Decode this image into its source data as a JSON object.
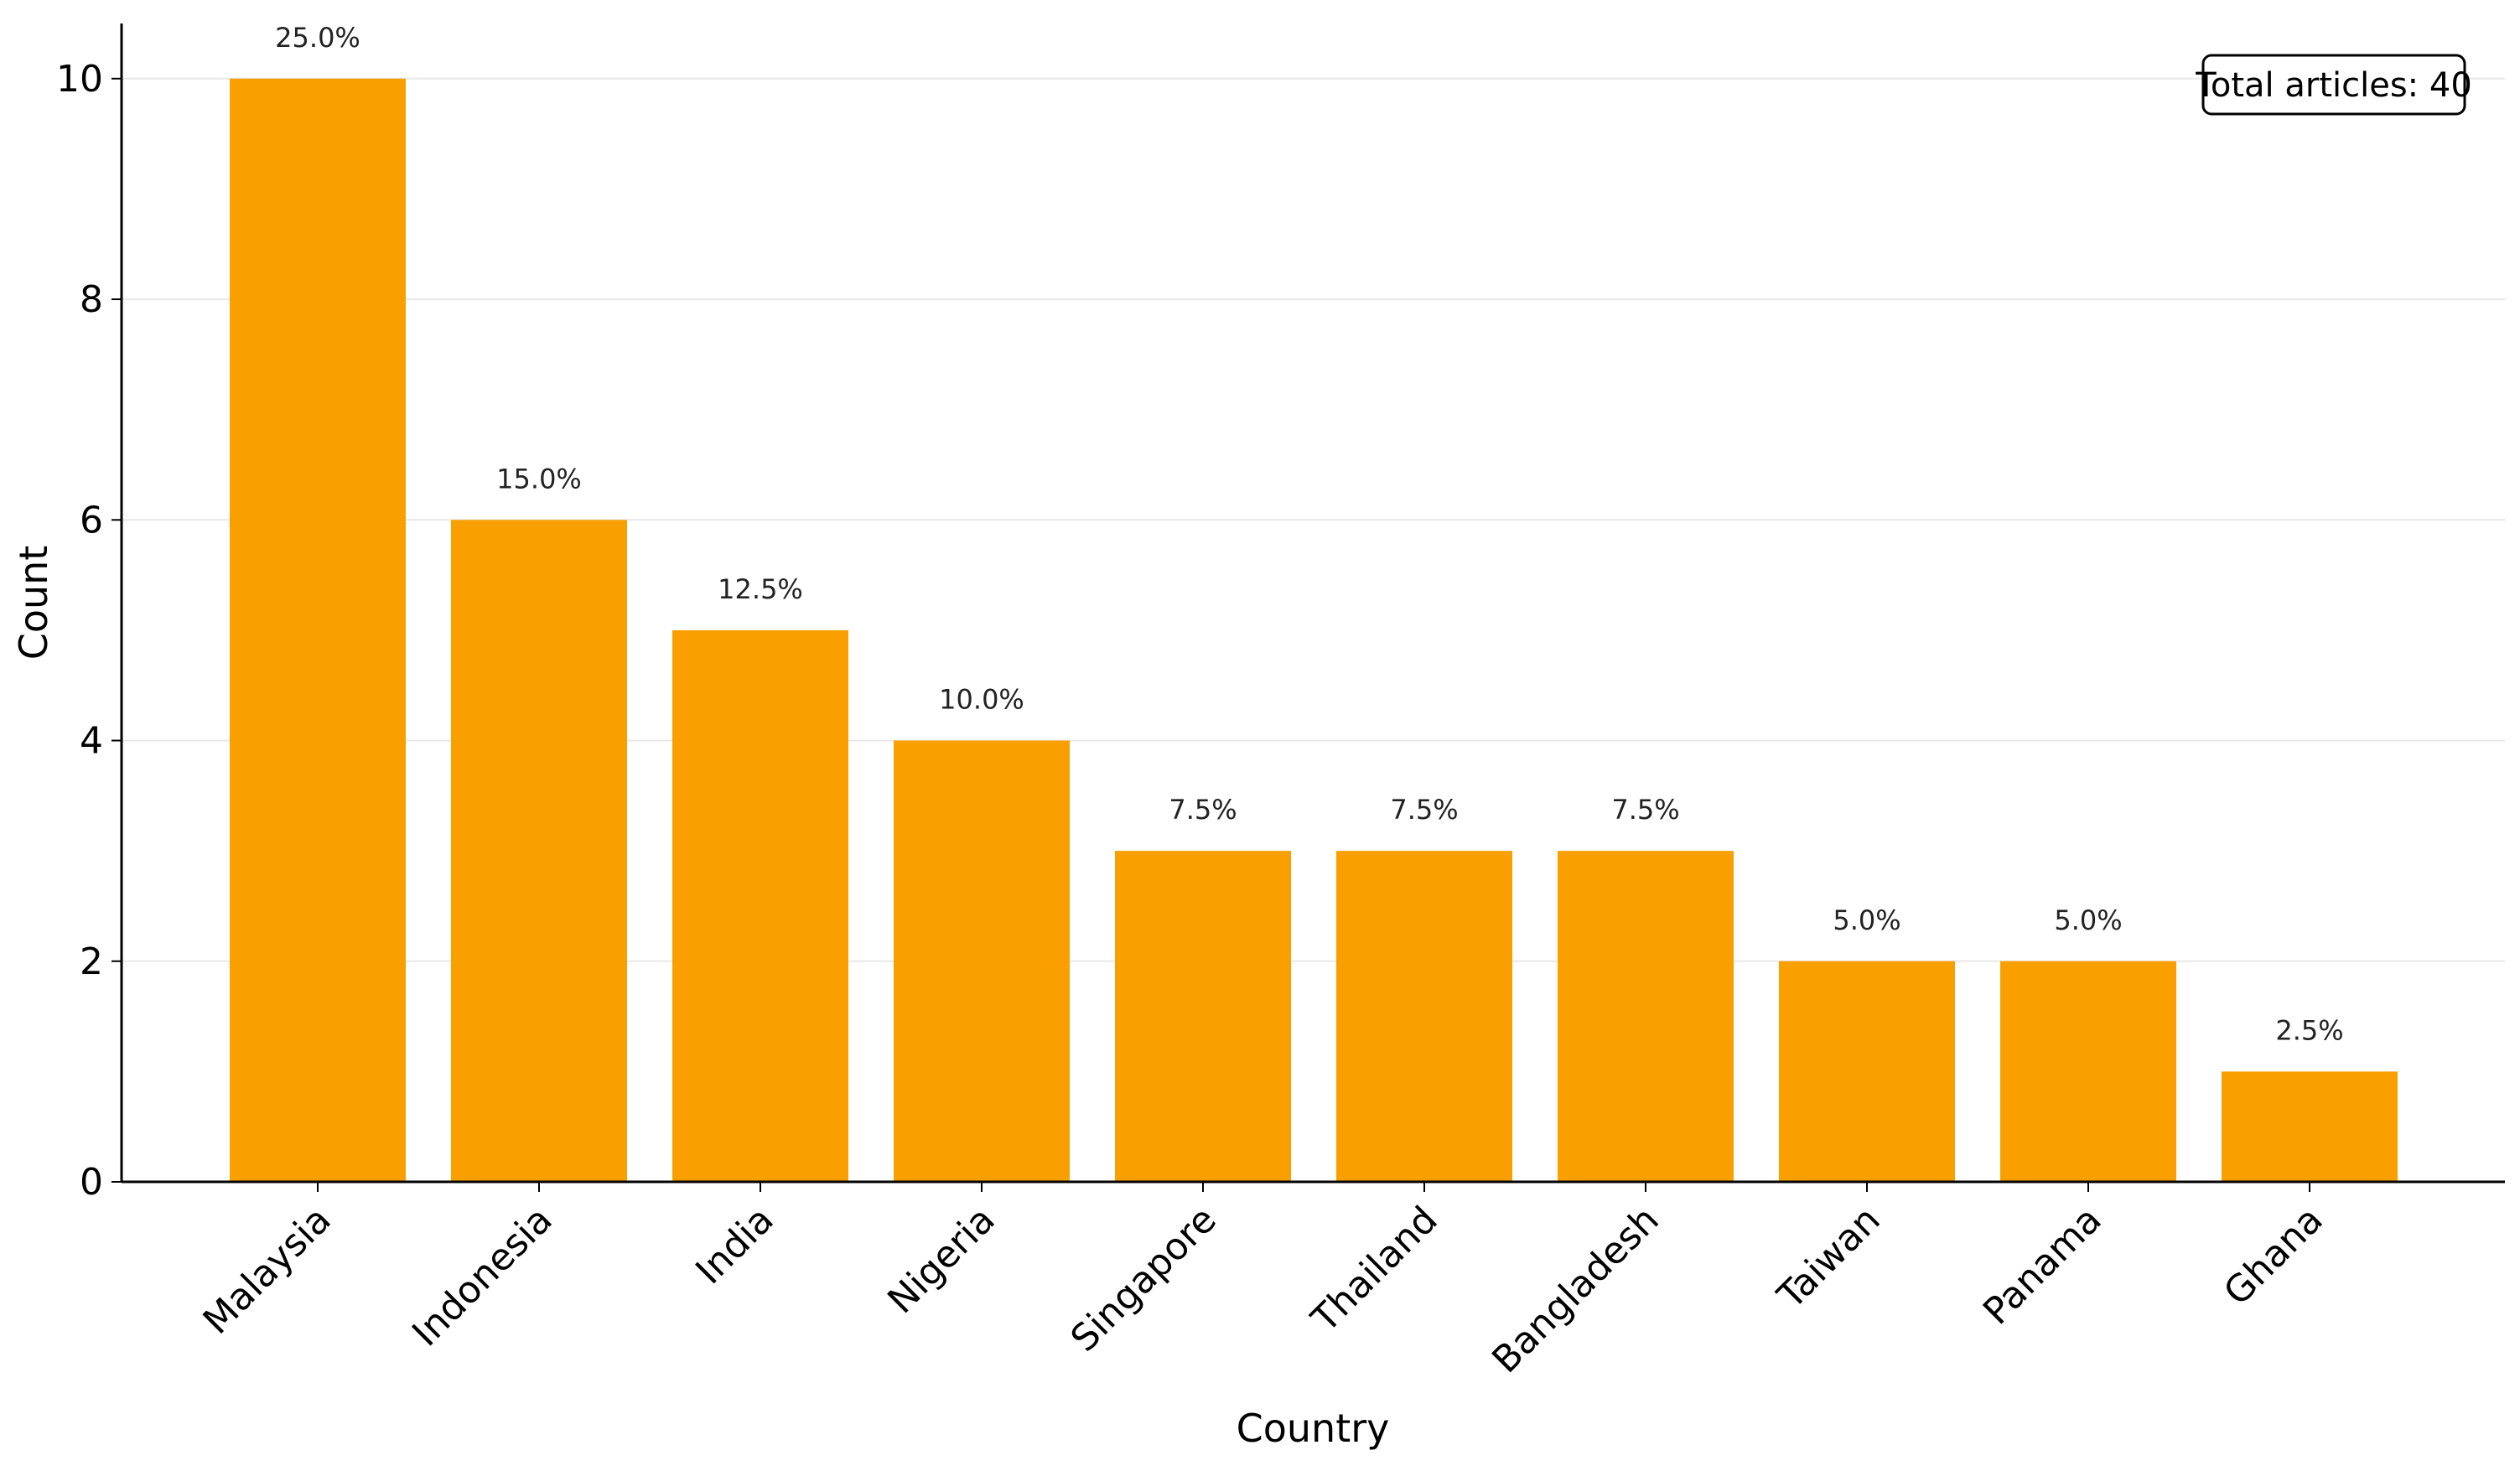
{
  "chart_data": {
    "type": "bar",
    "title": "",
    "xlabel": "Country",
    "ylabel": "Count",
    "categories": [
      "Malaysia",
      "Indonesia",
      "India",
      "Nigeria",
      "Singapore",
      "Thailand",
      "Bangladesh",
      "Taiwan",
      "Panama",
      "Ghana"
    ],
    "values": [
      10,
      6,
      5,
      4,
      3,
      3,
      3,
      2,
      2,
      1
    ],
    "data_labels": [
      "25.0%",
      "15.0%",
      "12.5%",
      "10.0%",
      "7.5%",
      "7.5%",
      "7.5%",
      "5.0%",
      "5.0%",
      "2.5%"
    ],
    "yticks": [
      0,
      2,
      4,
      6,
      8,
      10
    ],
    "ylim": [
      0,
      10.5
    ],
    "grid": "horizontal",
    "bar_color": "#F9A000",
    "annotation": {
      "text": "Total articles: 40",
      "placement": "top-right"
    }
  }
}
